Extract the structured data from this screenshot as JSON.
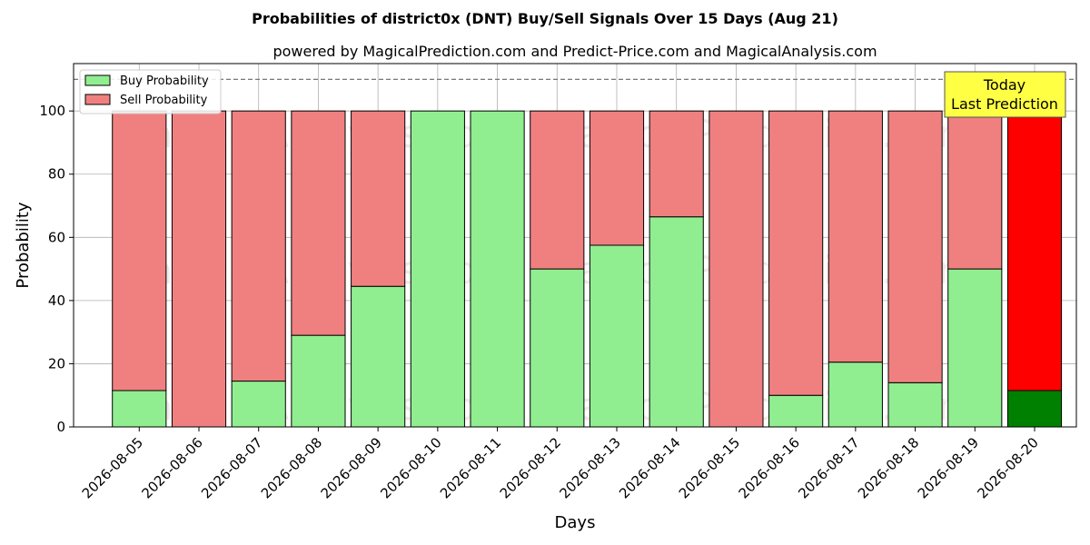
{
  "chart_data": {
    "type": "bar",
    "stacked": true,
    "title": "Probabilities of district0x (DNT) Buy/Sell Signals Over 15 Days (Aug 21)",
    "subtitle": "powered by MagicalPrediction.com and Predict-Price.com and MagicalAnalysis.com",
    "xlabel": "Days",
    "ylabel": "Probability",
    "ylim": [
      0,
      115
    ],
    "yticks": [
      0,
      20,
      40,
      60,
      80,
      100
    ],
    "reference_line": 110,
    "grid": true,
    "legend_position": "top-left",
    "categories": [
      "2026-08-05",
      "2026-08-06",
      "2026-08-07",
      "2026-08-08",
      "2026-08-09",
      "2026-08-10",
      "2026-08-11",
      "2026-08-12",
      "2026-08-13",
      "2026-08-14",
      "2026-08-15",
      "2026-08-16",
      "2026-08-17",
      "2026-08-18",
      "2026-08-19",
      "2026-08-20"
    ],
    "series": [
      {
        "name": "Buy Probability",
        "color": "#90ee90",
        "values": [
          11.5,
          0,
          14.5,
          29,
          44.5,
          100,
          100,
          50,
          57.5,
          66.5,
          0,
          10,
          20.5,
          14,
          50,
          11.5
        ]
      },
      {
        "name": "Sell Probability",
        "color": "#f08080",
        "values": [
          88.5,
          100,
          85.5,
          71,
          55.5,
          0,
          0,
          50,
          42.5,
          33.5,
          100,
          90,
          79.5,
          86,
          50,
          88.5
        ]
      }
    ],
    "highlight": {
      "index": 15,
      "buy_color": "#008000",
      "sell_color": "#ff0000"
    },
    "annotation": {
      "lines": [
        "Today",
        "Last Prediction"
      ],
      "fill": "#ffff44"
    },
    "watermarks": [
      "MagicalAnalysis.com",
      "MagicalPrediction.com"
    ]
  }
}
